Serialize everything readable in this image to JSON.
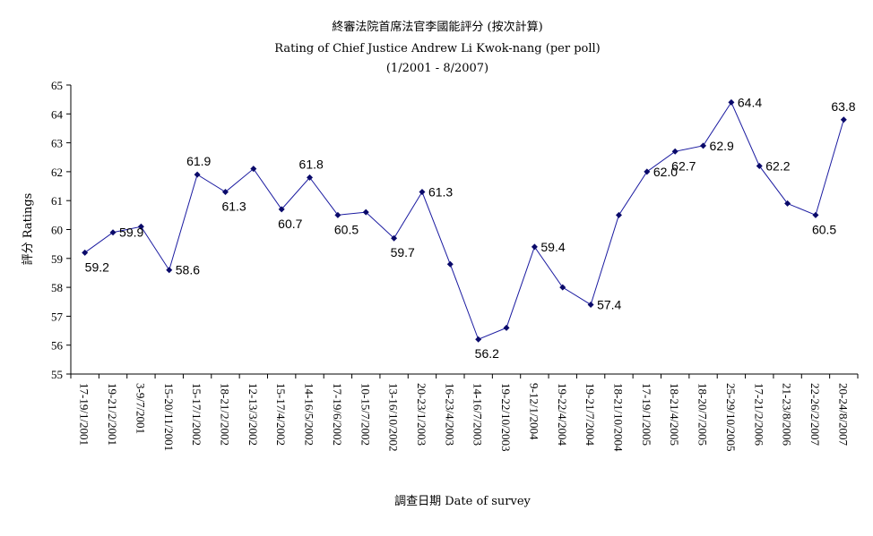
{
  "chart_data": {
    "type": "line",
    "title": "終審法院首席法官李國能評分 (按次計算)",
    "subtitle": "Rating of Chief Justice Andrew Li Kwok-nang  (per poll)",
    "subtitle2": "(1/2001 - 8/2007)",
    "xlabel": "調查日期 Date of survey",
    "ylabel": "評分 Ratings",
    "ylim": [
      55,
      65
    ],
    "yticks": [
      55,
      56,
      57,
      58,
      59,
      60,
      61,
      62,
      63,
      64,
      65
    ],
    "grid": false,
    "legend": "none",
    "line_color": "#1a1aa0",
    "categories": [
      "17-19/1/2001",
      "19-21/2/2001",
      "3-9/7/2001",
      "15-20/11/2001",
      "15-17/1/2002",
      "18-21/2/2002",
      "12-13/3/2002",
      "15-17/4/2002",
      "14-16/5/2002",
      "17-19/6/2002",
      "10-15/7/2002",
      "13-16/10/2002",
      "20-23/1/2003",
      "16-23/4/2003",
      "14-16/7/2003",
      "19-22/10/2003",
      "9-12/1/2004",
      "19-22/4/2004",
      "19-21/7/2004",
      "18-21/10/2004",
      "17-19/1/2005",
      "18-21/4/2005",
      "18-20/7/2005",
      "25-29/10/2005",
      "17-21/2/2006",
      "21-23/8/2006",
      "22-26/2/2007",
      "20-24/8/2007"
    ],
    "values": [
      59.2,
      59.9,
      60.1,
      58.6,
      61.9,
      61.3,
      62.1,
      60.7,
      61.8,
      60.5,
      60.6,
      59.7,
      61.3,
      58.8,
      56.2,
      56.6,
      59.4,
      58.0,
      57.4,
      60.5,
      62.0,
      62.7,
      62.9,
      64.4,
      62.2,
      60.9,
      60.5,
      63.8
    ],
    "data_labels": [
      {
        "index": 0,
        "text": "59.2",
        "pos": "below"
      },
      {
        "index": 1,
        "text": "59.9",
        "pos": "right"
      },
      {
        "index": 3,
        "text": "58.6",
        "pos": "right"
      },
      {
        "index": 4,
        "text": "61.9",
        "pos": "above"
      },
      {
        "index": 5,
        "text": "61.3",
        "pos": "below"
      },
      {
        "index": 7,
        "text": "60.7",
        "pos": "below"
      },
      {
        "index": 8,
        "text": "61.8",
        "pos": "above"
      },
      {
        "index": 9,
        "text": "60.5",
        "pos": "below"
      },
      {
        "index": 11,
        "text": "59.7",
        "pos": "below"
      },
      {
        "index": 12,
        "text": "61.3",
        "pos": "right"
      },
      {
        "index": 14,
        "text": "56.2",
        "pos": "below"
      },
      {
        "index": 16,
        "text": "59.4",
        "pos": "right"
      },
      {
        "index": 18,
        "text": "57.4",
        "pos": "right"
      },
      {
        "index": 20,
        "text": "62.0",
        "pos": "right"
      },
      {
        "index": 21,
        "text": "62.7",
        "pos": "below"
      },
      {
        "index": 22,
        "text": "62.9",
        "pos": "right"
      },
      {
        "index": 23,
        "text": "64.4",
        "pos": "right"
      },
      {
        "index": 24,
        "text": "62.2",
        "pos": "right"
      },
      {
        "index": 26,
        "text": "60.5",
        "pos": "below"
      },
      {
        "index": 27,
        "text": "63.8",
        "pos": "above"
      }
    ]
  }
}
